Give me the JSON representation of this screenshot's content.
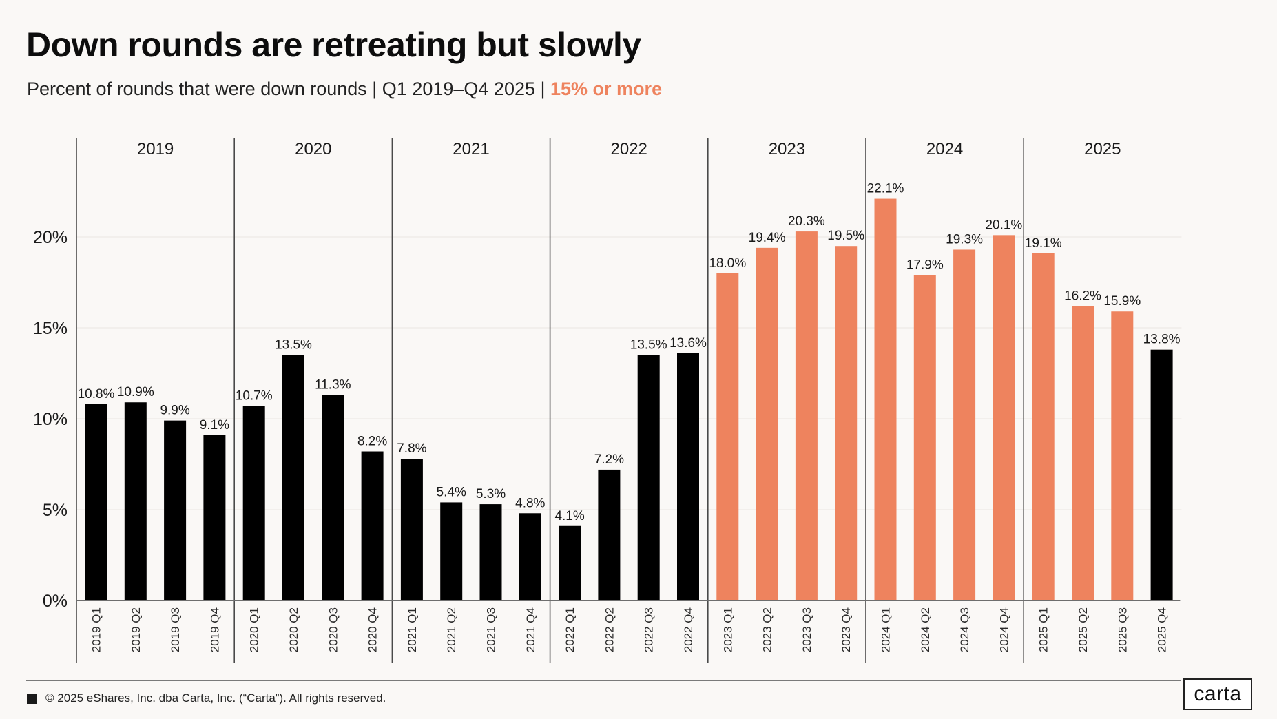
{
  "header": {
    "title": "Down rounds are retreating but slowly",
    "subtitle_main": "Percent of rounds that were down rounds | Q1 2019–Q4 2025 | ",
    "subtitle_highlight": "15% or more"
  },
  "colors": {
    "highlight": "#ee835e",
    "default_bar": "#000000",
    "axis": "#6e6e6e",
    "background": "#faf8f6"
  },
  "chart_data": {
    "type": "bar",
    "title": "Down rounds are retreating but slowly",
    "subtitle": "Percent of rounds that were down rounds | Q1 2019–Q4 2025 | 15% or more",
    "xlabel": "",
    "ylabel": "",
    "ylim": [
      0,
      25
    ],
    "yticks": [
      0,
      5,
      10,
      15,
      20
    ],
    "ytick_labels": [
      "0%",
      "5%",
      "10%",
      "15%",
      "20%"
    ],
    "grid": true,
    "highlight_threshold": 15,
    "highlight_rule": "bars with value >= 15% drawn in highlight color",
    "groups": [
      "2019",
      "2020",
      "2021",
      "2022",
      "2023",
      "2024",
      "2025"
    ],
    "categories": [
      "2019 Q1",
      "2019 Q2",
      "2019 Q3",
      "2019 Q4",
      "2020 Q1",
      "2020 Q2",
      "2020 Q3",
      "2020 Q4",
      "2021 Q1",
      "2021 Q2",
      "2021 Q3",
      "2021 Q4",
      "2022 Q1",
      "2022 Q2",
      "2022 Q3",
      "2022 Q4",
      "2023 Q1",
      "2023 Q2",
      "2023 Q3",
      "2023 Q4",
      "2024 Q1",
      "2024 Q2",
      "2024 Q3",
      "2024 Q4",
      "2025 Q1",
      "2025 Q2",
      "2025 Q3",
      "2025 Q4"
    ],
    "values": [
      10.8,
      10.9,
      9.9,
      9.1,
      10.7,
      13.5,
      11.3,
      8.2,
      7.8,
      5.4,
      5.3,
      4.8,
      4.1,
      7.2,
      13.5,
      13.6,
      18.0,
      19.4,
      20.3,
      19.5,
      22.1,
      17.9,
      19.3,
      20.1,
      19.1,
      16.2,
      15.9,
      13.8
    ],
    "value_labels": [
      "10.8%",
      "10.9%",
      "9.9%",
      "9.1%",
      "10.7%",
      "13.5%",
      "11.3%",
      "8.2%",
      "7.8%",
      "5.4%",
      "5.3%",
      "4.8%",
      "4.1%",
      "7.2%",
      "13.5%",
      "13.6%",
      "18.0%",
      "19.4%",
      "20.3%",
      "19.5%",
      "22.1%",
      "17.9%",
      "19.3%",
      "20.1%",
      "19.1%",
      "16.2%",
      "15.9%",
      "13.8%"
    ],
    "legend": []
  },
  "footer": {
    "copyright": "© 2025 eShares, Inc. dba Carta, Inc. (“Carta”). All rights reserved.",
    "logo_text": "carta"
  }
}
